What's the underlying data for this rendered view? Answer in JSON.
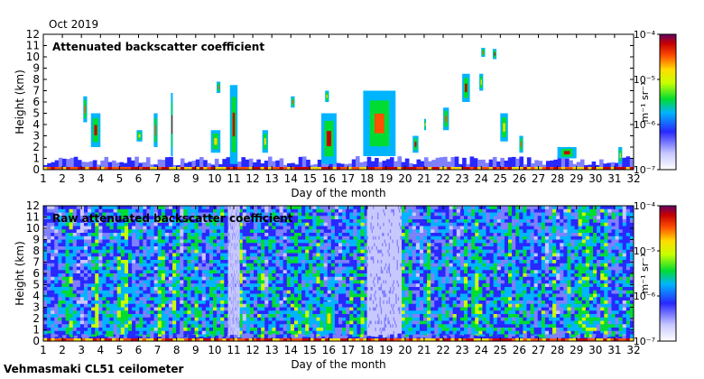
{
  "header": {
    "date": "Oct 2019"
  },
  "footer": {
    "instrument": "Vehmasmaki CL51 ceilometer"
  },
  "chart_data": [
    {
      "type": "heatmap",
      "title": "Attenuated backscatter coefficient",
      "xlabel": "Day of the month",
      "ylabel": "Height (km)",
      "xlim": [
        1,
        32
      ],
      "ylim": [
        0,
        12
      ],
      "x_ticks": [
        1,
        2,
        3,
        4,
        5,
        6,
        7,
        8,
        9,
        10,
        11,
        12,
        13,
        14,
        15,
        16,
        17,
        18,
        19,
        20,
        21,
        22,
        23,
        24,
        25,
        26,
        27,
        28,
        29,
        30,
        31,
        32
      ],
      "y_ticks": [
        0,
        1,
        2,
        3,
        4,
        5,
        6,
        7,
        8,
        9,
        10,
        11,
        12
      ],
      "colorbar": {
        "label": "m⁻¹ sr⁻¹",
        "scale": "log",
        "min": 1e-07,
        "max": 0.0001,
        "tick_labels": [
          "10⁻⁴",
          "10⁻⁵",
          "10⁻⁶",
          "10⁻⁷"
        ]
      },
      "features": [
        {
          "kind": "boundary_layer",
          "day_start": 1.0,
          "day_end": 32.0,
          "top_km": 1.0
        },
        {
          "kind": "cloud",
          "day_start": 3.1,
          "day_end": 3.3,
          "bottom_km": 4.2,
          "top_km": 6.5
        },
        {
          "kind": "cloud",
          "day_start": 3.5,
          "day_end": 4.0,
          "bottom_km": 2.0,
          "top_km": 5.0
        },
        {
          "kind": "cloud",
          "day_start": 5.9,
          "day_end": 6.2,
          "bottom_km": 2.5,
          "top_km": 3.5
        },
        {
          "kind": "cloud",
          "day_start": 6.8,
          "day_end": 7.0,
          "bottom_km": 2.0,
          "top_km": 5.0
        },
        {
          "kind": "cloud",
          "day_start": 7.7,
          "day_end": 7.8,
          "bottom_km": 1.2,
          "top_km": 6.8
        },
        {
          "kind": "cloud",
          "day_start": 9.8,
          "day_end": 10.3,
          "bottom_km": 1.5,
          "top_km": 3.5
        },
        {
          "kind": "cloud",
          "day_start": 10.1,
          "day_end": 10.3,
          "bottom_km": 6.8,
          "top_km": 7.8
        },
        {
          "kind": "cloud",
          "day_start": 10.8,
          "day_end": 11.2,
          "bottom_km": 0.5,
          "top_km": 7.5
        },
        {
          "kind": "cloud",
          "day_start": 12.5,
          "day_end": 12.8,
          "bottom_km": 1.5,
          "top_km": 3.5
        },
        {
          "kind": "cloud",
          "day_start": 14.0,
          "day_end": 14.2,
          "bottom_km": 5.5,
          "top_km": 6.5
        },
        {
          "kind": "cloud",
          "day_start": 15.6,
          "day_end": 16.4,
          "bottom_km": 0.5,
          "top_km": 5.0
        },
        {
          "kind": "cloud",
          "day_start": 15.8,
          "day_end": 16.0,
          "bottom_km": 6.0,
          "top_km": 7.0
        },
        {
          "kind": "cloud",
          "day_start": 17.8,
          "day_end": 19.5,
          "bottom_km": 1.2,
          "top_km": 7.0
        },
        {
          "kind": "cloud",
          "day_start": 20.4,
          "day_end": 20.7,
          "bottom_km": 1.5,
          "top_km": 3.0
        },
        {
          "kind": "cloud",
          "day_start": 21.0,
          "day_end": 21.1,
          "bottom_km": 3.5,
          "top_km": 4.5
        },
        {
          "kind": "cloud",
          "day_start": 22.0,
          "day_end": 22.3,
          "bottom_km": 3.5,
          "top_km": 5.5
        },
        {
          "kind": "cloud",
          "day_start": 23.0,
          "day_end": 23.4,
          "bottom_km": 6.0,
          "top_km": 8.5
        },
        {
          "kind": "cloud",
          "day_start": 23.9,
          "day_end": 24.1,
          "bottom_km": 7.0,
          "top_km": 8.5
        },
        {
          "kind": "cloud",
          "day_start": 24.0,
          "day_end": 24.2,
          "bottom_km": 10.0,
          "top_km": 10.8
        },
        {
          "kind": "cloud",
          "day_start": 24.6,
          "day_end": 24.8,
          "bottom_km": 9.8,
          "top_km": 10.7
        },
        {
          "kind": "cloud",
          "day_start": 25.0,
          "day_end": 25.4,
          "bottom_km": 2.5,
          "top_km": 5.0
        },
        {
          "kind": "cloud",
          "day_start": 26.0,
          "day_end": 26.2,
          "bottom_km": 1.5,
          "top_km": 3.0
        },
        {
          "kind": "cloud",
          "day_start": 28.0,
          "day_end": 29.0,
          "bottom_km": 1.0,
          "top_km": 2.0
        },
        {
          "kind": "cloud",
          "day_start": 31.2,
          "day_end": 31.4,
          "bottom_km": 0.5,
          "top_km": 2.0
        }
      ]
    },
    {
      "type": "heatmap",
      "title": "Raw attenuated backscatter coefficient",
      "xlabel": "Day of the month",
      "ylabel": "Height (km)",
      "xlim": [
        1,
        32
      ],
      "ylim": [
        0,
        12
      ],
      "x_ticks": [
        1,
        2,
        3,
        4,
        5,
        6,
        7,
        8,
        9,
        10,
        11,
        12,
        13,
        14,
        15,
        16,
        17,
        18,
        19,
        20,
        21,
        22,
        23,
        24,
        25,
        26,
        27,
        28,
        29,
        30,
        31,
        32
      ],
      "y_ticks": [
        0,
        1,
        2,
        3,
        4,
        5,
        6,
        7,
        8,
        9,
        10,
        11,
        12
      ],
      "colorbar": {
        "label": "m⁻¹ sr⁻¹",
        "scale": "log",
        "min": 1e-07,
        "max": 0.0001,
        "tick_labels": [
          "10⁻⁴",
          "10⁻⁵",
          "10⁻⁶",
          "10⁻⁷"
        ]
      },
      "features": [
        {
          "kind": "noise_field",
          "day_start": 1.0,
          "day_end": 32.0,
          "bottom_km": 0.0,
          "top_km": 12.0
        },
        {
          "kind": "low_noise_gap",
          "day_start": 18.0,
          "day_end": 19.8,
          "bottom_km": 0.0,
          "top_km": 12.0
        },
        {
          "kind": "low_noise_gap",
          "day_start": 10.7,
          "day_end": 11.3,
          "bottom_km": 0.0,
          "top_km": 12.0
        },
        {
          "kind": "cloud",
          "day_start": 15.7,
          "day_end": 16.3,
          "bottom_km": 0.5,
          "top_km": 3.5
        },
        {
          "kind": "boundary_layer",
          "day_start": 1.0,
          "day_end": 32.0,
          "top_km": 0.6
        }
      ]
    }
  ]
}
